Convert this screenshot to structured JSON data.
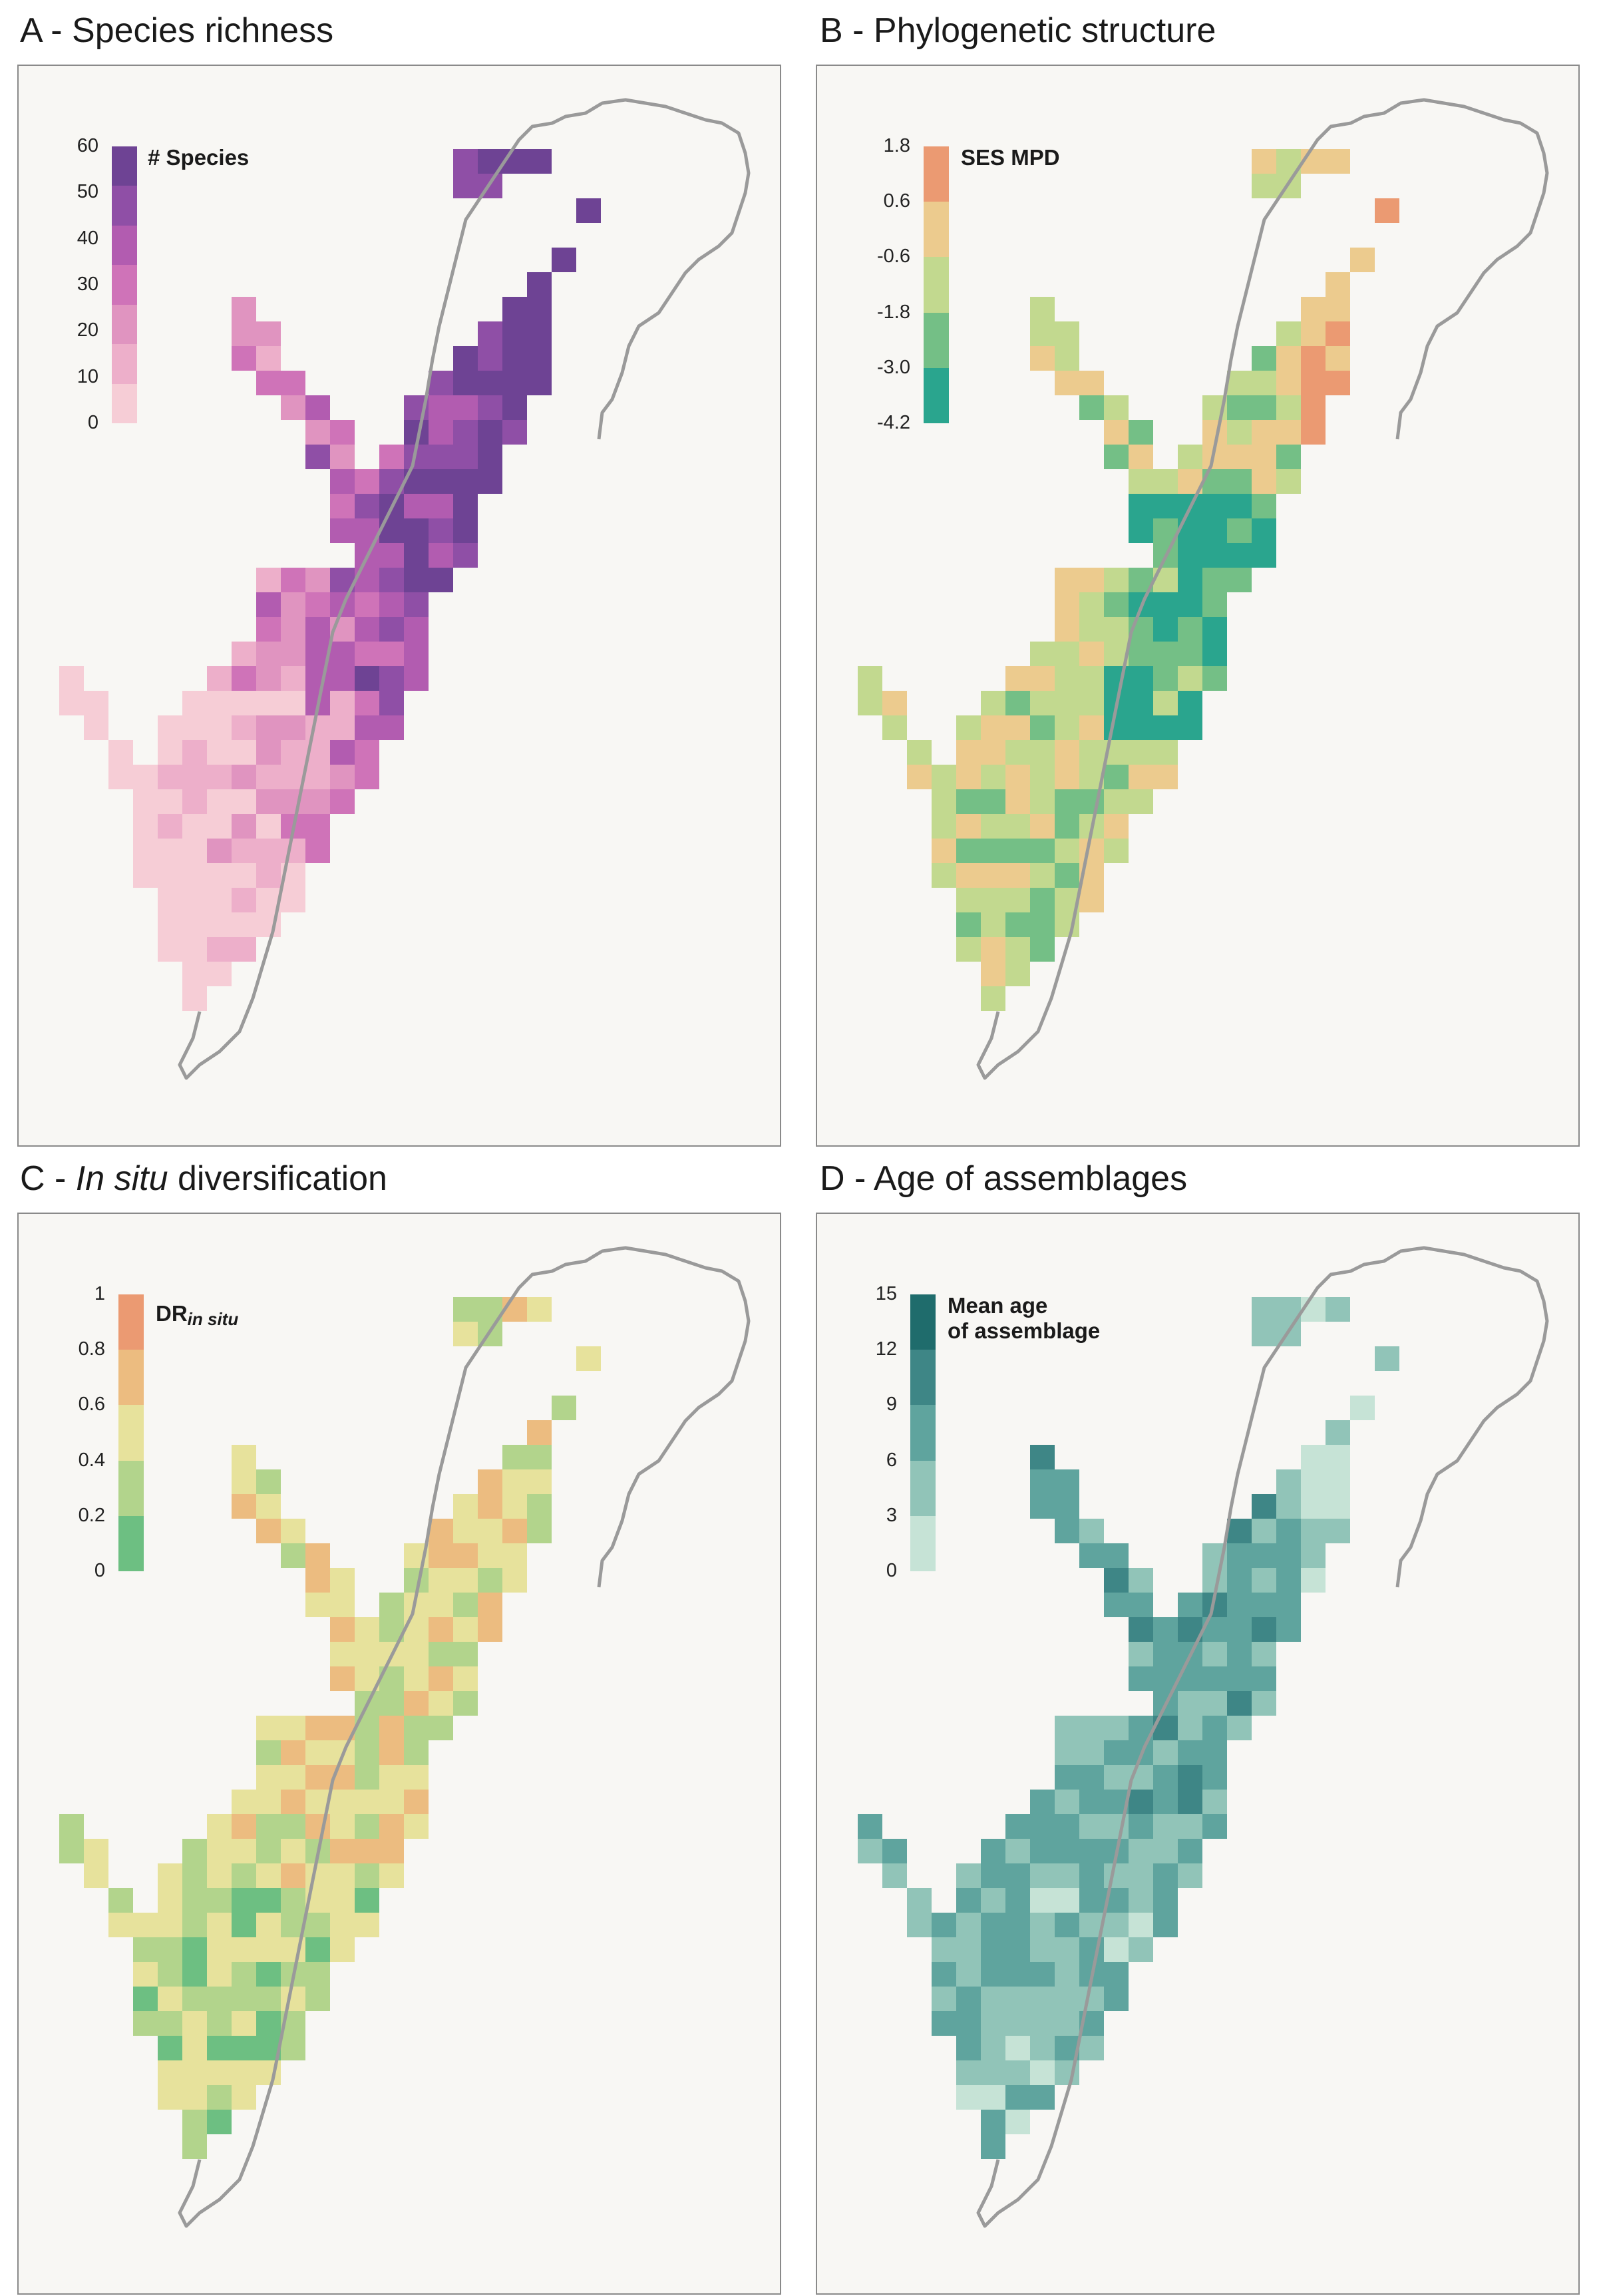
{
  "panels": [
    {
      "id": "A",
      "title_prefix": "A - ",
      "title_italic": "",
      "title_suffix": "Species richness",
      "legend_title": "# Species",
      "legend_title_sub": "",
      "legend_title_line2": "",
      "ticks": [
        "60",
        "50",
        "40",
        "30",
        "20",
        "10",
        "0"
      ],
      "colors": [
        "#6e4394",
        "#8f4fa6",
        "#b25cb0",
        "#cf73b8",
        "#e094c0",
        "#edafca",
        "#f6cdd6"
      ],
      "variable": "species_richness",
      "coastline_color": "#9a9a9a"
    },
    {
      "id": "B",
      "title_prefix": "B - ",
      "title_italic": "",
      "title_suffix": "Phylogenetic structure",
      "legend_title": "SES MPD",
      "legend_title_sub": "",
      "legend_title_line2": "",
      "ticks": [
        "1.8",
        "0.6",
        "-0.6",
        "-1.8",
        "-3.0",
        "-4.2"
      ],
      "colors": [
        "#eb9a72",
        "#eccb8e",
        "#c2d98f",
        "#74bf86",
        "#2aa58e"
      ],
      "variable": "ses_mpd",
      "coastline_color": "#9a9a9a"
    },
    {
      "id": "C",
      "title_prefix": "C - ",
      "title_italic": "In situ",
      "title_suffix": " diversification",
      "legend_title": "DR",
      "legend_title_sub": "in situ",
      "legend_title_line2": "",
      "ticks": [
        "1",
        "0.8",
        "0.6",
        "0.4",
        "0.2",
        "0"
      ],
      "colors": [
        "#eb9a72",
        "#ecbc80",
        "#e7e29c",
        "#b2d48c",
        "#6dbf82"
      ],
      "variable": "dr_in_situ",
      "coastline_color": "#9a9a9a"
    },
    {
      "id": "D",
      "title_prefix": "D - ",
      "title_italic": "",
      "title_suffix": "Age of assemblages",
      "legend_title": "Mean age",
      "legend_title_sub": "",
      "legend_title_line2": "of assemblage",
      "ticks": [
        "15",
        "12",
        "9",
        "6",
        "3",
        "0"
      ],
      "colors": [
        "#1f6c6c",
        "#3e8686",
        "#5fa49e",
        "#91c4b8",
        "#c6e3d6"
      ],
      "variable": "mean_age",
      "coastline_color": "#9a9a9a"
    }
  ]
}
